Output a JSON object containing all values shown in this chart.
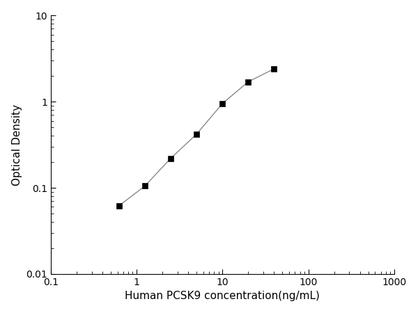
{
  "x_values": [
    0.625,
    1.25,
    2.5,
    5.0,
    10.0,
    20.0,
    40.0
  ],
  "y_values": [
    0.062,
    0.105,
    0.22,
    0.42,
    0.95,
    1.7,
    2.4
  ],
  "xlabel": "Human PCSK9 concentration(ng/mL)",
  "ylabel": "Optical Density",
  "xlim": [
    0.1,
    1000
  ],
  "ylim": [
    0.01,
    10
  ],
  "marker": "s",
  "marker_color": "#000000",
  "marker_size": 6,
  "line_color": "#888888",
  "line_width": 1.0,
  "line_style": "-",
  "background_color": "#ffffff",
  "tick_color": "#000000",
  "xlabel_fontsize": 11,
  "ylabel_fontsize": 11,
  "tick_fontsize": 10,
  "x_major_labels": {
    "0.1": "0.1",
    "1": "1",
    "10": "10",
    "100": "100",
    "1000": "1000"
  },
  "y_major_labels": {
    "0.01": "0.01",
    "0.1": "0.1",
    "1": "1",
    "10": "10"
  }
}
